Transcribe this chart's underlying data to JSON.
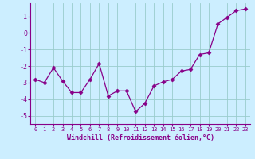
{
  "x": [
    0,
    1,
    2,
    3,
    4,
    5,
    6,
    7,
    8,
    9,
    10,
    11,
    12,
    13,
    14,
    15,
    16,
    17,
    18,
    19,
    20,
    21,
    22,
    23
  ],
  "y": [
    -2.8,
    -3.0,
    -2.1,
    -2.9,
    -3.6,
    -3.6,
    -2.8,
    -1.85,
    -3.8,
    -3.5,
    -3.5,
    -4.75,
    -4.25,
    -3.2,
    -2.95,
    -2.8,
    -2.3,
    -2.2,
    -1.3,
    -1.2,
    0.55,
    0.95,
    1.35,
    1.45
  ],
  "line_color": "#880088",
  "marker": "D",
  "marker_size": 2.5,
  "bg_color": "#cceeff",
  "grid_color": "#99cccc",
  "xlabel": "Windchill (Refroidissement éolien,°C)",
  "xlabel_color": "#880088",
  "tick_color": "#880088",
  "spine_color": "#880088",
  "ylim": [
    -5.5,
    1.8
  ],
  "xlim": [
    -0.5,
    23.5
  ],
  "yticks": [
    1,
    0,
    -1,
    -2,
    -3,
    -4,
    -5
  ],
  "xtick_labels": [
    "0",
    "1",
    "2",
    "3",
    "4",
    "5",
    "6",
    "7",
    "8",
    "9",
    "10",
    "11",
    "12",
    "13",
    "14",
    "15",
    "16",
    "17",
    "18",
    "19",
    "20",
    "21",
    "22",
    "23"
  ],
  "tick_fontsize": 5.0,
  "ytick_fontsize": 6.0,
  "xlabel_fontsize": 6.0
}
